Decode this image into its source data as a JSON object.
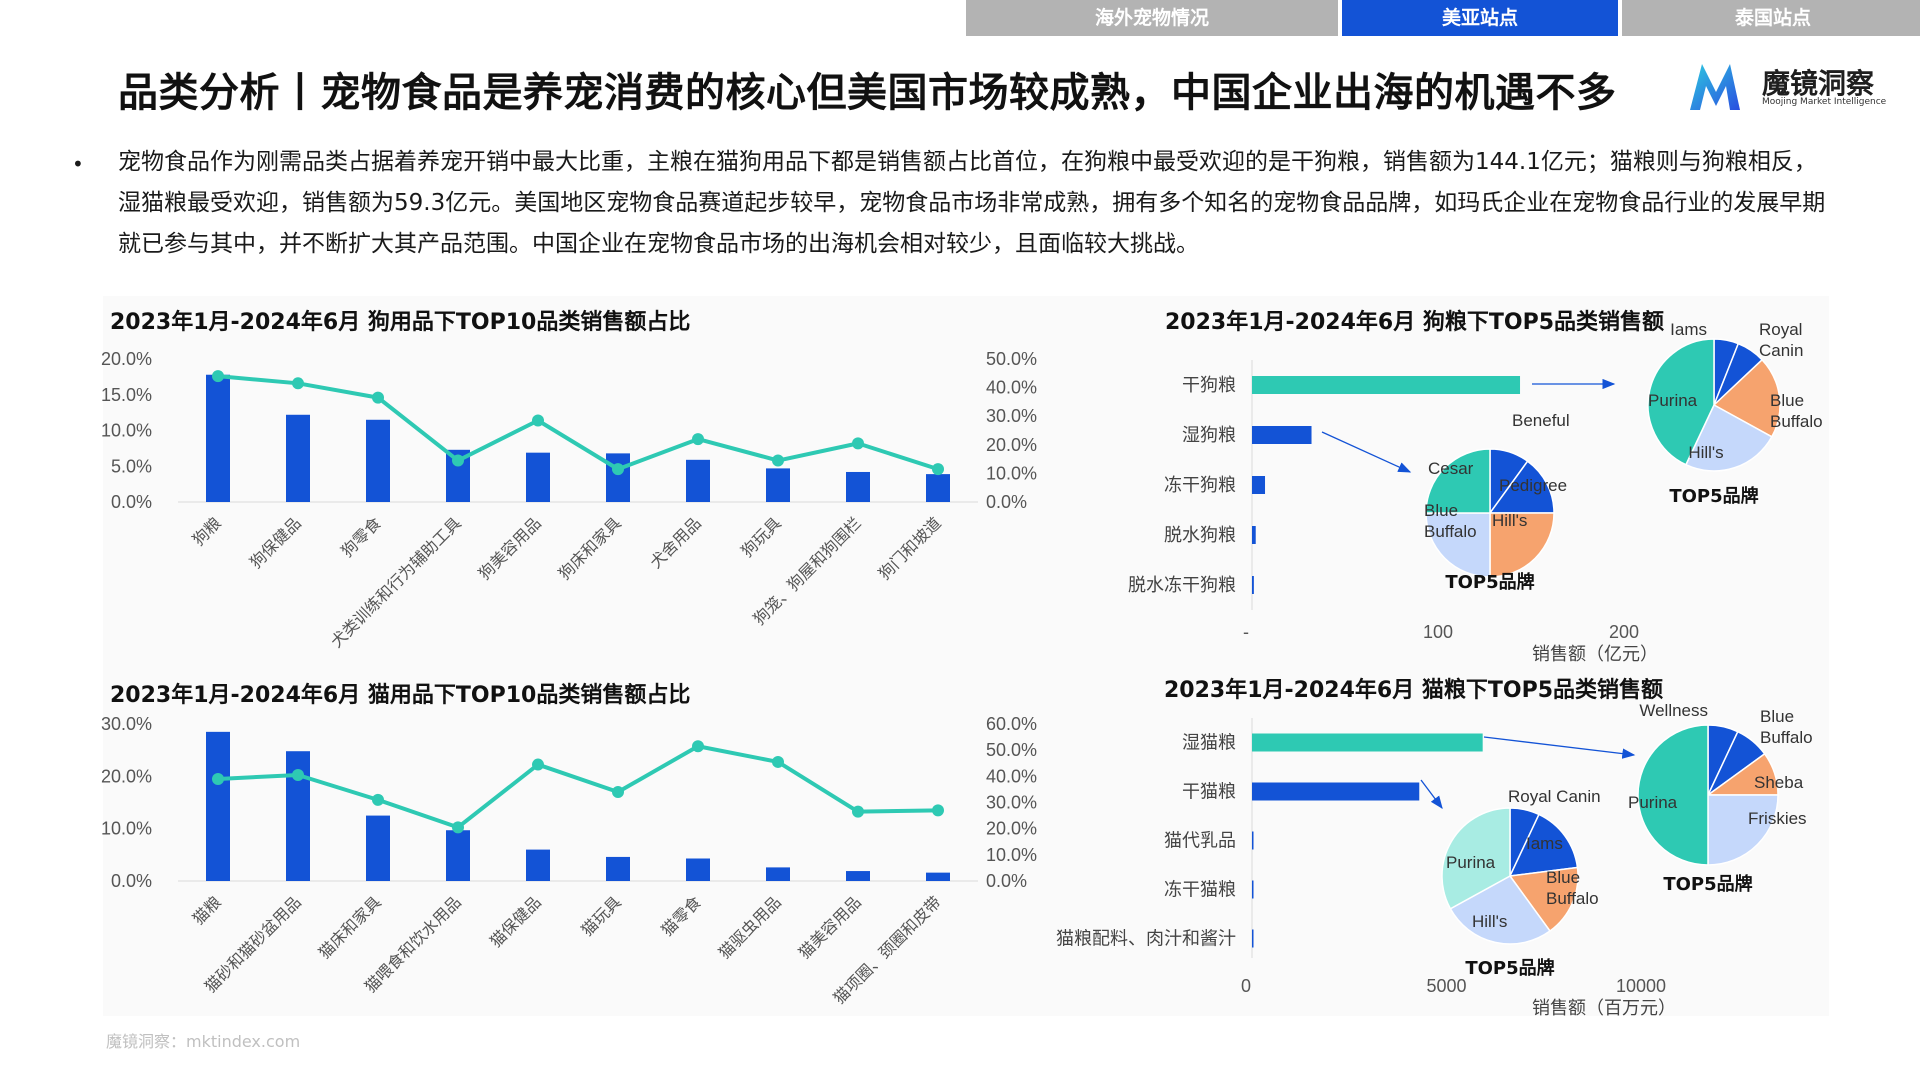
{
  "tabs": [
    {
      "label": "海外宠物情况",
      "active": false
    },
    {
      "label": "美亚站点",
      "active": true
    },
    {
      "label": "泰国站点",
      "active": false
    }
  ],
  "title": "品类分析丨宠物食品是养宠消费的核心但美国市场较成熟，中国企业出海的机遇不多",
  "logo": {
    "name": "魔镜洞察",
    "tagline": "Moojing Market Intelligence"
  },
  "summary": "宠物食品作为刚需品类占据着养宠开销中最大比重，主粮在猫狗用品下都是销售额占比首位，在狗粮中最受欢迎的是干狗粮，销售额为144.1亿元；猫粮则与狗粮相反，湿猫粮最受欢迎，销售额为59.3亿元。美国地区宠物食品赛道起步较早，宠物食品市场非常成熟，拥有多个知名的宠物食品品牌，如玛氏企业在宠物食品行业的发展早期就已参与其中，并不断扩大其产品范围。中国企业在宠物食品市场的出海机会相对较少，且面临较大挑战。",
  "source": "魔镜洞察：mktindex.com",
  "colors": {
    "bar": "#1353d6",
    "line": "#2ec9b3",
    "tab_active": "#1353d6",
    "tab_inactive": "#b3b3b3"
  },
  "chart_data": [
    {
      "id": "dog_top10",
      "type": "bar+line",
      "title": "2023年1月-2024年6月 狗用品下TOP10品类销售额占比",
      "categories": [
        "狗粮",
        "狗保健品",
        "狗零食",
        "犬类训练和行为辅助工具",
        "狗美容用品",
        "狗床和家具",
        "犬舍用品",
        "狗玩具",
        "狗笼、狗屋和狗围栏",
        "狗门和坡道"
      ],
      "series": [
        {
          "type": "bar",
          "axis": "left",
          "values": [
            17.8,
            12.2,
            11.5,
            7.3,
            6.9,
            6.8,
            5.9,
            4.7,
            4.2,
            3.9
          ]
        },
        {
          "type": "line",
          "axis": "right",
          "values": [
            44.0,
            41.5,
            36.5,
            14.5,
            28.5,
            11.5,
            22.0,
            14.5,
            20.5,
            11.5
          ]
        }
      ],
      "left_ticks": [
        "0.0%",
        "5.0%",
        "10.0%",
        "15.0%",
        "20.0%"
      ],
      "right_ticks": [
        "0.0%",
        "10.0%",
        "20.0%",
        "30.0%",
        "40.0%",
        "50.0%"
      ],
      "ylim_left": [
        0,
        20
      ],
      "ylim_right": [
        0,
        50
      ]
    },
    {
      "id": "cat_top10",
      "type": "bar+line",
      "title": "2023年1月-2024年6月 猫用品下TOP10品类销售额占比",
      "categories": [
        "猫粮",
        "猫砂和猫砂盆用品",
        "猫床和家具",
        "猫喂食和饮水用品",
        "猫保健品",
        "猫玩具",
        "猫零食",
        "猫驱虫用品",
        "猫美容用品",
        "猫项圈、颈圈和皮带"
      ],
      "series": [
        {
          "type": "bar",
          "axis": "left",
          "values": [
            28.5,
            24.8,
            12.5,
            9.7,
            6.0,
            4.6,
            4.3,
            2.6,
            1.9,
            1.6
          ]
        },
        {
          "type": "line",
          "axis": "right",
          "values": [
            39.0,
            40.5,
            31.0,
            20.5,
            44.5,
            34.0,
            51.5,
            45.5,
            26.5,
            27.0
          ]
        }
      ],
      "left_ticks": [
        "0.0%",
        "10.0%",
        "20.0%",
        "30.0%"
      ],
      "right_ticks": [
        "0.0%",
        "10.0%",
        "20.0%",
        "30.0%",
        "40.0%",
        "50.0%",
        "60.0%"
      ],
      "ylim_left": [
        0,
        30
      ],
      "ylim_right": [
        0,
        60
      ]
    },
    {
      "id": "dogfood_top5",
      "type": "bar",
      "orientation": "horizontal",
      "title": "2023年1月-2024年6月 狗粮下TOP5品类销售额",
      "categories": [
        "干狗粮",
        "湿狗粮",
        "冻干狗粮",
        "脱水狗粮",
        "脱水冻干狗粮"
      ],
      "values": [
        144.1,
        32,
        7,
        2,
        1
      ],
      "x_ticks": [
        "-",
        "100",
        "200"
      ],
      "xlim": [
        0,
        200
      ],
      "xlabel": "销售额（亿元）",
      "pies": [
        {
          "title": "TOP5品牌",
          "attached_to": "干狗粮",
          "slices": [
            {
              "label": "Iams",
              "value": 6,
              "color": "#1353d6"
            },
            {
              "label": "Royal Canin",
              "value": 7,
              "color": "#1353d6"
            },
            {
              "label": "Blue Buffalo",
              "value": 20,
              "color": "#f6a36e"
            },
            {
              "label": "Hill's",
              "value": 24,
              "color": "#c5d8fb"
            },
            {
              "label": "Purina",
              "value": 43,
              "color": "#2ec9b3"
            }
          ]
        },
        {
          "title": "TOP5品牌",
          "attached_to": "湿狗粮",
          "slices": [
            {
              "label": "Beneful",
              "value": 10,
              "color": "#1353d6"
            },
            {
              "label": "Pedigree",
              "value": 15,
              "color": "#1353d6"
            },
            {
              "label": "Hill's",
              "value": 25,
              "color": "#f6a36e"
            },
            {
              "label": "Blue Buffalo",
              "value": 25,
              "color": "#c5d8fb"
            },
            {
              "label": "Cesar",
              "value": 25,
              "color": "#2ec9b3"
            }
          ]
        }
      ]
    },
    {
      "id": "catfood_top5",
      "type": "bar",
      "orientation": "horizontal",
      "title": "2023年1月-2024年6月 猫粮下TOP5品类销售额",
      "categories": [
        "湿猫粮",
        "干猫粮",
        "猫代乳品",
        "冻干猫粮",
        "猫粮配料、肉汁和酱汁"
      ],
      "values": [
        5930,
        4300,
        30,
        15,
        5
      ],
      "x_ticks": [
        "0",
        "5000",
        "10000"
      ],
      "xlim": [
        0,
        10000
      ],
      "xlabel": "销售额（百万元）",
      "pies": [
        {
          "title": "TOP5品牌",
          "attached_to": "湿猫粮",
          "slices": [
            {
              "label": "Wellness",
              "value": 7,
              "color": "#1353d6"
            },
            {
              "label": "Blue Buffalo",
              "value": 8,
              "color": "#1353d6"
            },
            {
              "label": "Sheba",
              "value": 10,
              "color": "#f6a36e"
            },
            {
              "label": "Friskies",
              "value": 25,
              "color": "#c5d8fb"
            },
            {
              "label": "Purina",
              "value": 50,
              "color": "#2ec9b3"
            }
          ]
        },
        {
          "title": "TOP5品牌",
          "attached_to": "干猫粮",
          "slices": [
            {
              "label": "Royal Canin",
              "value": 7,
              "color": "#1353d6"
            },
            {
              "label": "Iams",
              "value": 16,
              "color": "#1353d6"
            },
            {
              "label": "Blue Buffalo",
              "value": 17,
              "color": "#f6a36e"
            },
            {
              "label": "Hill's",
              "value": 27,
              "color": "#c5d8fb"
            },
            {
              "label": "Purina",
              "value": 33,
              "color": "#a8ece3"
            }
          ]
        }
      ]
    }
  ]
}
